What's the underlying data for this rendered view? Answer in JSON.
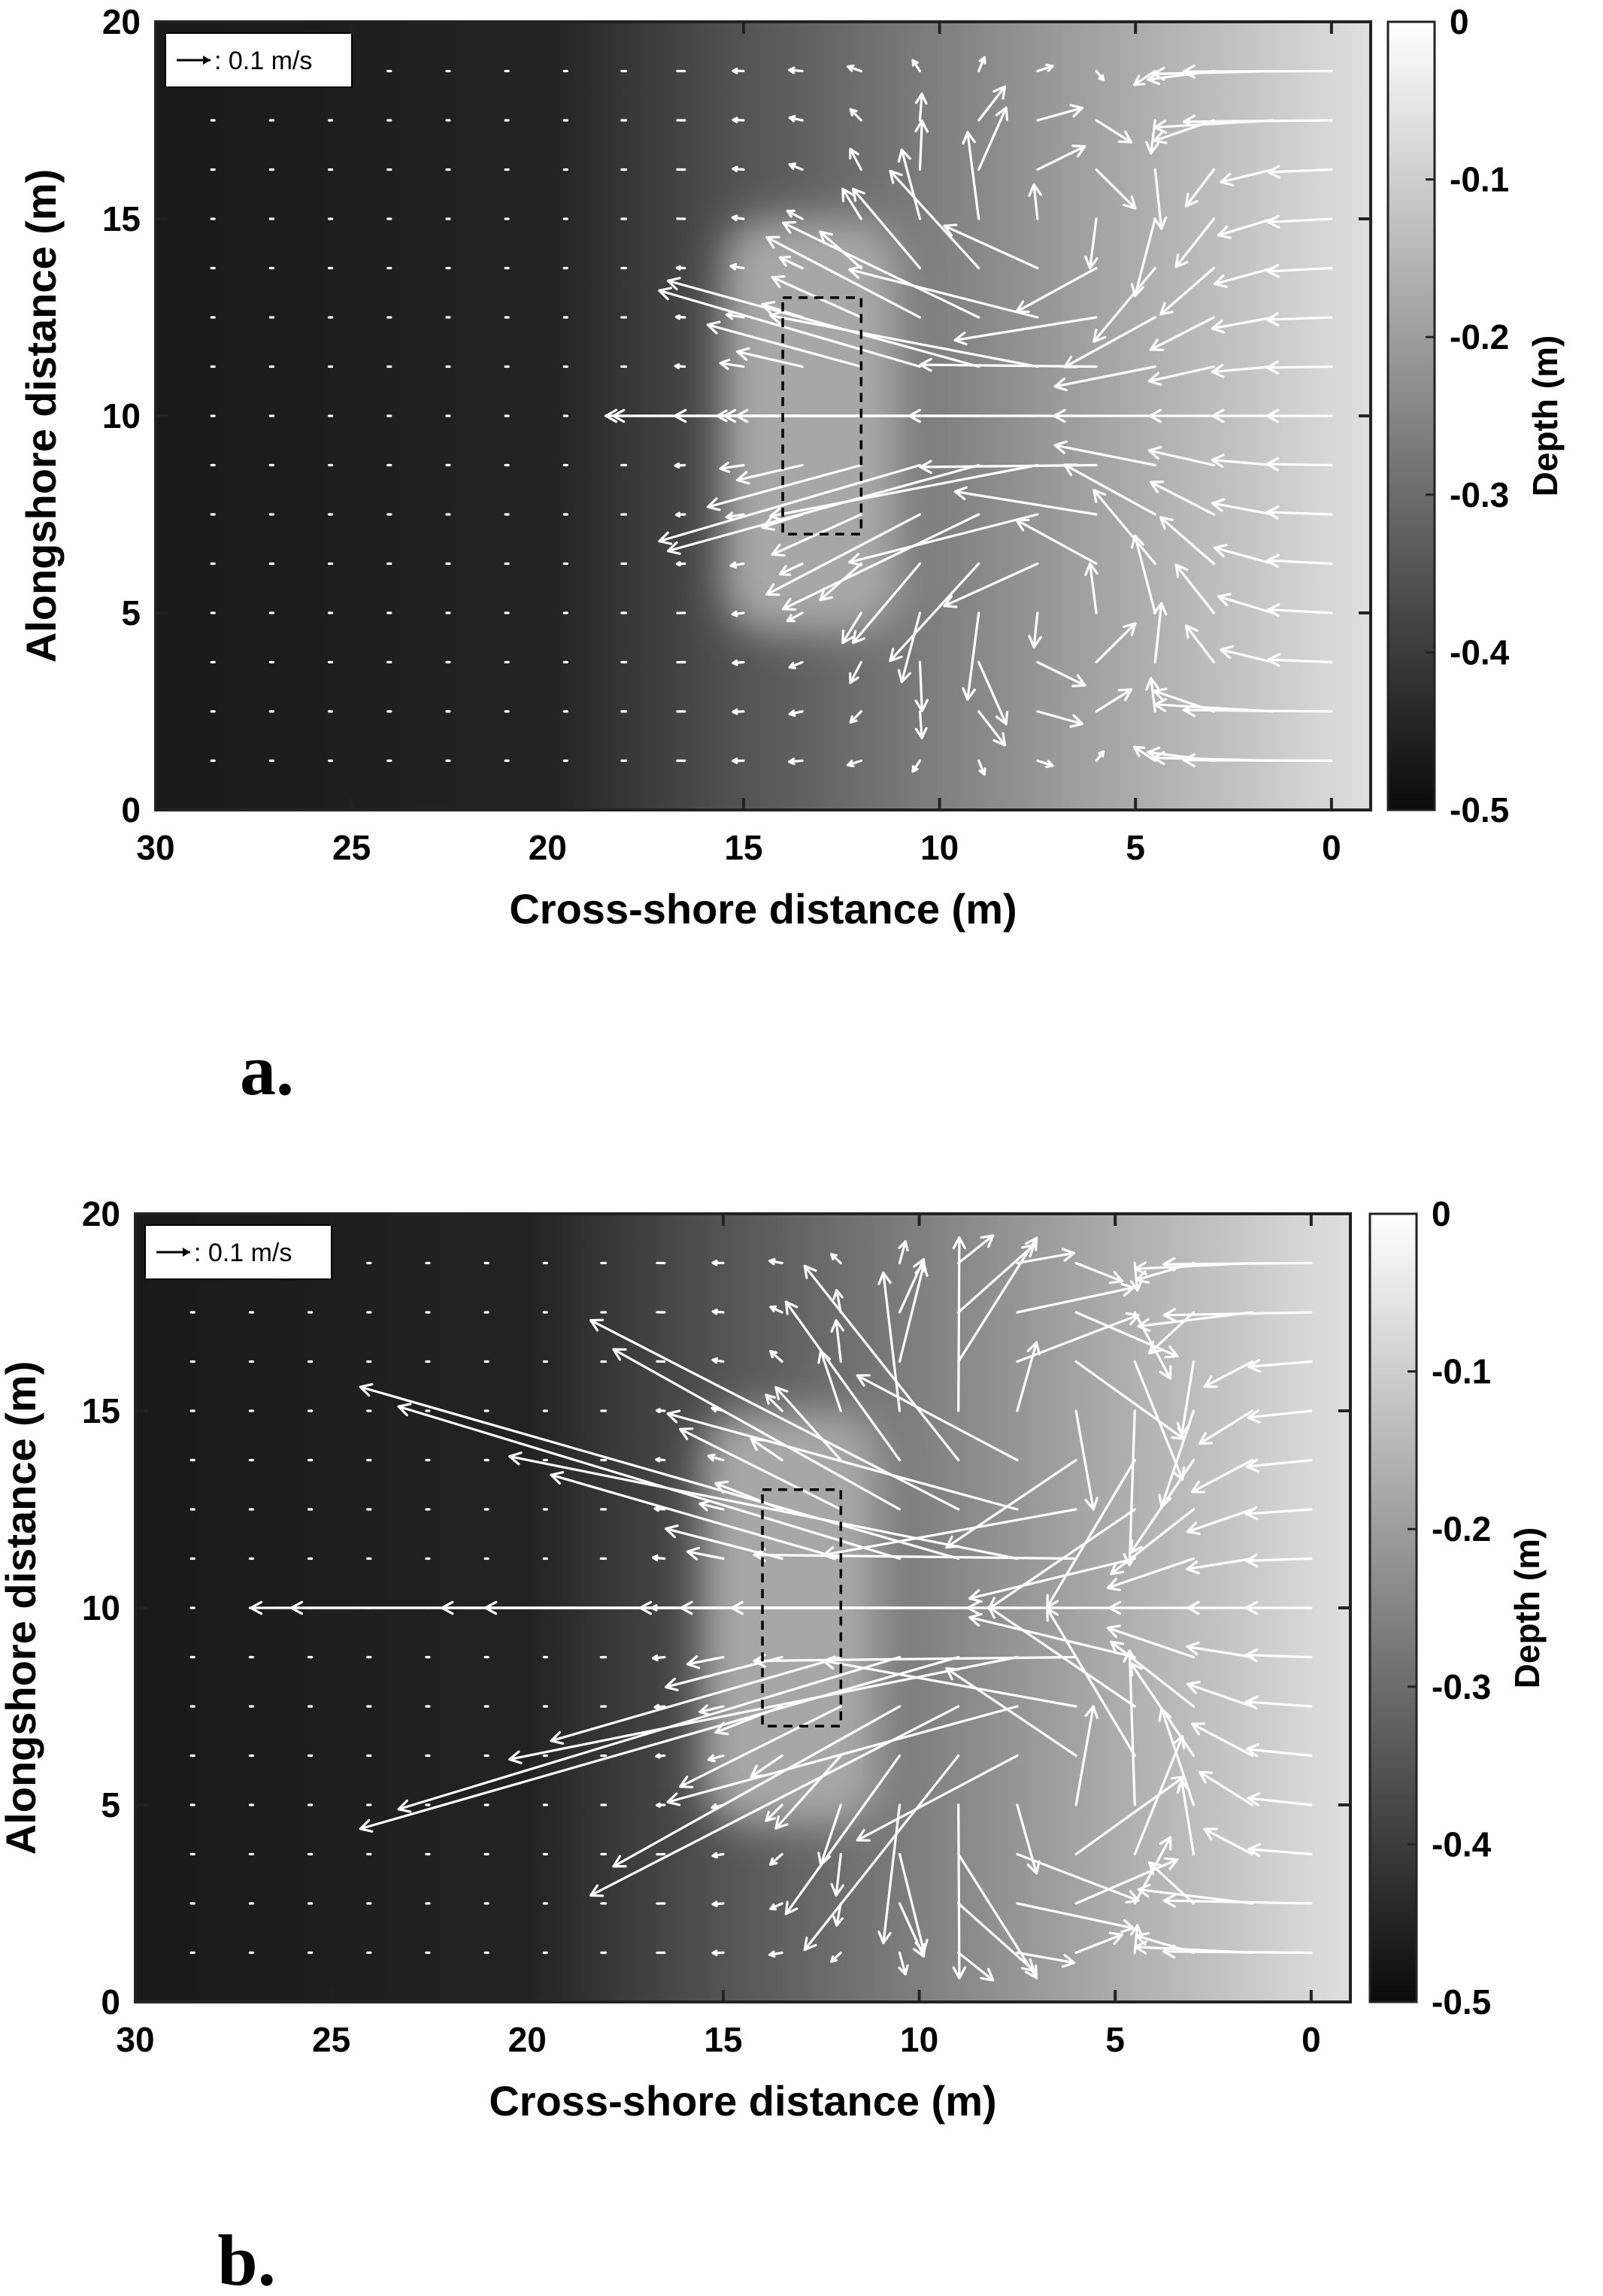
{
  "chart_data": [
    {
      "type": "quiver",
      "panel_label": "a.",
      "xlabel": "Cross-shore distance (m)",
      "ylabel": "Alongshore distance (m)",
      "colorbar_label": "Depth (m)",
      "xlim": [
        30,
        -1
      ],
      "ylim": [
        0,
        20
      ],
      "xticks": [
        "30",
        "25",
        "20",
        "15",
        "10",
        "5",
        "0"
      ],
      "yticks": [
        "0",
        "5",
        "10",
        "15",
        "20"
      ],
      "colorbar_ticks": [
        "0",
        "-0.1",
        "-0.2",
        "-0.3",
        "-0.4",
        "-0.5"
      ],
      "colorbar_range": [
        -0.5,
        0
      ],
      "colormap": "gray",
      "bathymetry": {
        "description": "planar slope, deepest offshore",
        "depth_at_x30": -0.47,
        "depth_at_x20": -0.45,
        "depth_at_x15": -0.35,
        "depth_at_x10": -0.26,
        "depth_at_x5": -0.17,
        "depth_at_x0": -0.08,
        "shoal": {
          "x_range": [
            11,
            15.5
          ],
          "y_range": [
            4.5,
            15
          ],
          "depth": -0.18
        }
      },
      "structure_box": {
        "x": [
          12,
          14
        ],
        "y": [
          7,
          13
        ],
        "style": "dashed"
      },
      "reference_vector": {
        "label": ": 0.1 m/s",
        "speed": 0.1
      },
      "flow_strength": 1.0,
      "vector_grid": {
        "x_spacing": 1.5,
        "y_spacing": 1.25,
        "x_range": [
          0,
          29.5
        ],
        "y_range": [
          1.25,
          18.75
        ]
      },
      "colors": {
        "arrow": "#ffffff",
        "box": "#000000"
      }
    },
    {
      "type": "quiver",
      "panel_label": "b.",
      "xlabel": "Cross-shore distance (m)",
      "ylabel": "Alongshore distance (m)",
      "colorbar_label": "Depth (m)",
      "xlim": [
        30,
        -1
      ],
      "ylim": [
        0,
        20
      ],
      "xticks": [
        "30",
        "25",
        "20",
        "15",
        "10",
        "5",
        "0"
      ],
      "yticks": [
        "0",
        "5",
        "10",
        "15",
        "20"
      ],
      "colorbar_ticks": [
        "0",
        "-0.1",
        "-0.2",
        "-0.3",
        "-0.4",
        "-0.5"
      ],
      "colorbar_range": [
        -0.5,
        0
      ],
      "colormap": "gray",
      "bathymetry": {
        "description": "planar slope, deepest offshore",
        "depth_at_x30": -0.47,
        "depth_at_x20": -0.45,
        "depth_at_x15": -0.35,
        "depth_at_x10": -0.26,
        "depth_at_x5": -0.17,
        "depth_at_x0": -0.08,
        "shoal": {
          "x_range": [
            11,
            15.5
          ],
          "y_range": [
            4.5,
            15
          ],
          "depth": -0.18
        }
      },
      "structure_box": {
        "x": [
          12,
          14
        ],
        "y": [
          7,
          13
        ],
        "style": "dashed"
      },
      "reference_vector": {
        "label": ": 0.1 m/s",
        "speed": 0.1
      },
      "flow_strength": 2.0,
      "vector_grid": {
        "x_spacing": 1.5,
        "y_spacing": 1.25,
        "x_range": [
          0,
          29.5
        ],
        "y_range": [
          1.25,
          18.75
        ]
      },
      "colors": {
        "arrow": "#ffffff",
        "box": "#000000"
      }
    }
  ]
}
